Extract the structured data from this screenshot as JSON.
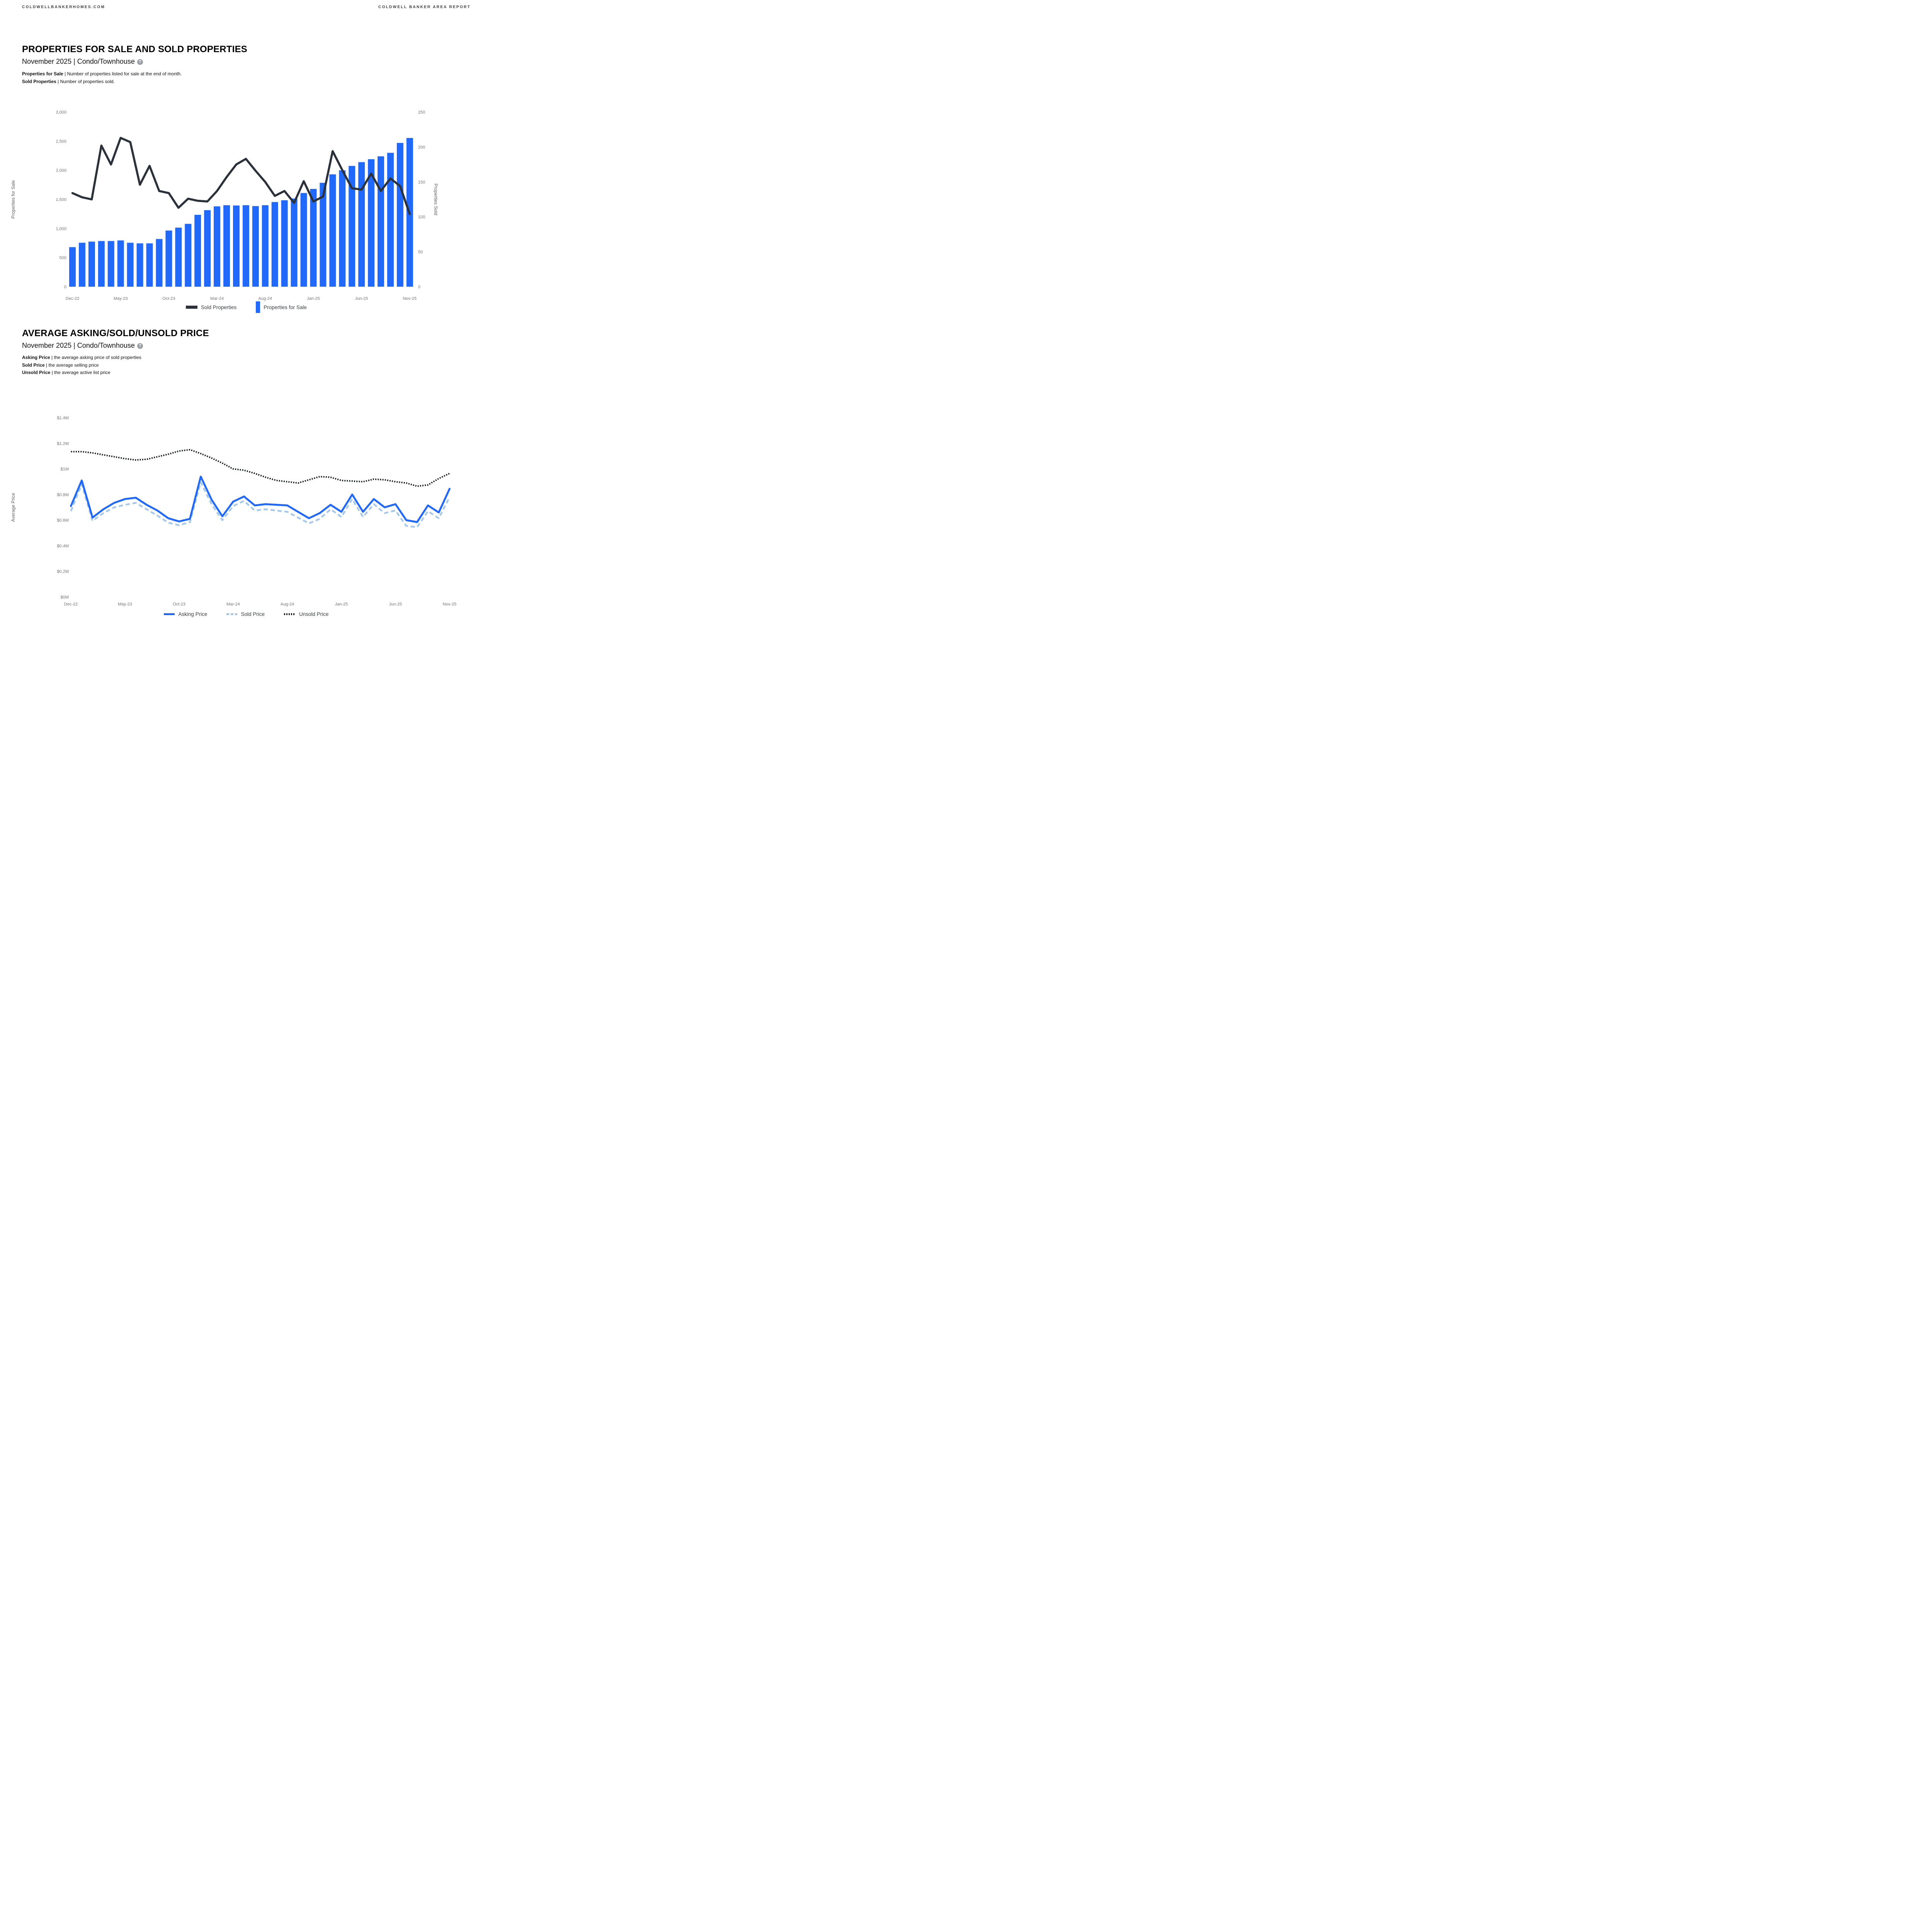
{
  "header": {
    "left": "COLDWELLBANKERHOMES.COM",
    "right": "COLDWELL BANKER AREA REPORT"
  },
  "sections": [
    {
      "title": "PROPERTIES FOR SALE AND SOLD PROPERTIES",
      "subtitle": "November 2025 | Condo/Townhouse",
      "help_icon": "?",
      "descriptions": [
        {
          "term": "Properties for Sale",
          "text": "| Number of properties listed for sale at the end of month."
        },
        {
          "term": "Sold Properties",
          "text": "| Number of properties sold."
        }
      ],
      "legend": [
        {
          "label": "Sold Properties"
        },
        {
          "label": "Properties for Sale"
        }
      ]
    },
    {
      "title": "AVERAGE ASKING/SOLD/UNSOLD PRICE",
      "subtitle": "November 2025 | Condo/Townhouse",
      "help_icon": "?",
      "descriptions": [
        {
          "term": "Asking Price",
          "text": "| the average asking price of sold properties"
        },
        {
          "term": "Sold Price",
          "text": "| the average selling price"
        },
        {
          "term": "Unsold Price",
          "text": "| the average active list price"
        }
      ],
      "legend": [
        {
          "label": "Asking Price"
        },
        {
          "label": "Sold Price"
        },
        {
          "label": "Unsold Price"
        }
      ]
    }
  ],
  "chart_data": [
    {
      "type": "bar",
      "title": "Properties for Sale and Sold Properties",
      "categories": [
        "Dec-22",
        "Jan-23",
        "Feb-23",
        "Mar-23",
        "Apr-23",
        "May-23",
        "Jun-23",
        "Jul-23",
        "Aug-23",
        "Sep-23",
        "Oct-23",
        "Nov-23",
        "Dec-23",
        "Jan-24",
        "Feb-24",
        "Mar-24",
        "Apr-24",
        "May-24",
        "Jun-24",
        "Jul-24",
        "Aug-24",
        "Sep-24",
        "Oct-24",
        "Nov-24",
        "Dec-24",
        "Jan-25",
        "Feb-25",
        "Mar-25",
        "Apr-25",
        "May-25",
        "Jun-25",
        "Jul-25",
        "Aug-25",
        "Sep-25",
        "Oct-25",
        "Nov-25"
      ],
      "x_tick_labels": [
        "Dec-22",
        "May-23",
        "Oct-23",
        "Mar-24",
        "Aug-24",
        "Jan-25",
        "Jun-25",
        "Nov-25"
      ],
      "grid": "off",
      "legend_position": "bottom",
      "series": [
        {
          "name": "Properties for Sale",
          "type": "bar",
          "axis": "left",
          "color": "#2169fb",
          "values": [
            680,
            755,
            775,
            785,
            785,
            795,
            755,
            745,
            745,
            820,
            965,
            1015,
            1080,
            1235,
            1315,
            1380,
            1400,
            1395,
            1400,
            1385,
            1400,
            1455,
            1485,
            1515,
            1610,
            1680,
            1785,
            1930,
            2000,
            2075,
            2140,
            2190,
            2240,
            2300,
            2470,
            2555
          ]
        },
        {
          "name": "Sold Properties",
          "type": "line",
          "axis": "right",
          "color": "#2b3139",
          "values": [
            134,
            128,
            125,
            202,
            175,
            213,
            207,
            146,
            173,
            137,
            134,
            113,
            126,
            123,
            122,
            137,
            157,
            175,
            183,
            166,
            150,
            130,
            137,
            120,
            151,
            122,
            129,
            194,
            167,
            141,
            139,
            162,
            137,
            155,
            144,
            104
          ]
        }
      ],
      "left_axis": {
        "title": "Properties for Sale",
        "min": 0,
        "max": 3000,
        "step": 500,
        "tick_labels": [
          "0",
          "500",
          "1,000",
          "1,500",
          "2,000",
          "2,500",
          "3,000"
        ]
      },
      "right_axis": {
        "title": "Properties Sold",
        "min": 0,
        "max": 250,
        "step": 50,
        "tick_labels": [
          "0",
          "50",
          "100",
          "150",
          "200",
          "250"
        ]
      }
    },
    {
      "type": "line",
      "title": "Average Asking/Sold/Unsold Price",
      "categories": [
        "Dec-22",
        "Jan-23",
        "Feb-23",
        "Mar-23",
        "Apr-23",
        "May-23",
        "Jun-23",
        "Jul-23",
        "Aug-23",
        "Sep-23",
        "Oct-23",
        "Nov-23",
        "Dec-23",
        "Jan-24",
        "Feb-24",
        "Mar-24",
        "Apr-24",
        "May-24",
        "Jun-24",
        "Jul-24",
        "Aug-24",
        "Sep-24",
        "Oct-24",
        "Nov-24",
        "Dec-24",
        "Jan-25",
        "Feb-25",
        "Mar-25",
        "Apr-25",
        "May-25",
        "Jun-25",
        "Jul-25",
        "Aug-25",
        "Sep-25",
        "Oct-25",
        "Nov-25"
      ],
      "x_tick_labels": [
        "Dec-22",
        "May-23",
        "Oct-23",
        "Mar-24",
        "Aug-24",
        "Jan-25",
        "Jun-25",
        "Nov-25"
      ],
      "grid": "off",
      "legend_position": "bottom",
      "unit": "$M",
      "series": [
        {
          "name": "Asking Price",
          "type": "line",
          "style": "solid",
          "color": "#2169fb",
          "values": [
            0.71,
            0.91,
            0.62,
            0.685,
            0.735,
            0.765,
            0.775,
            0.72,
            0.675,
            0.615,
            0.59,
            0.61,
            0.94,
            0.76,
            0.63,
            0.745,
            0.785,
            0.715,
            0.725,
            0.72,
            0.715,
            0.665,
            0.615,
            0.655,
            0.72,
            0.665,
            0.8,
            0.665,
            0.765,
            0.7,
            0.725,
            0.6,
            0.585,
            0.715,
            0.66,
            0.845
          ]
        },
        {
          "name": "Sold Price",
          "type": "line",
          "style": "dashed",
          "color": "#a5c8ea",
          "values": [
            0.67,
            0.88,
            0.595,
            0.655,
            0.7,
            0.72,
            0.735,
            0.685,
            0.635,
            0.58,
            0.56,
            0.585,
            0.895,
            0.725,
            0.6,
            0.71,
            0.75,
            0.675,
            0.685,
            0.675,
            0.665,
            0.62,
            0.575,
            0.61,
            0.685,
            0.625,
            0.765,
            0.625,
            0.725,
            0.655,
            0.675,
            0.555,
            0.545,
            0.67,
            0.615,
            0.78
          ]
        },
        {
          "name": "Unsold Price",
          "type": "line",
          "style": "dotted",
          "color": "#1b1e22",
          "values": [
            1.135,
            1.135,
            1.125,
            1.11,
            1.095,
            1.08,
            1.07,
            1.075,
            1.095,
            1.115,
            1.14,
            1.15,
            1.12,
            1.085,
            1.045,
            1.0,
            0.99,
            0.965,
            0.935,
            0.91,
            0.9,
            0.89,
            0.915,
            0.94,
            0.935,
            0.91,
            0.905,
            0.9,
            0.92,
            0.915,
            0.9,
            0.89,
            0.865,
            0.875,
            0.925,
            0.965
          ]
        }
      ],
      "y_axis": {
        "title": "Average Price",
        "min": 0,
        "max": 1.4,
        "step": 0.2,
        "tick_labels": [
          "$0M",
          "$0.2M",
          "$0.4M",
          "$0.6M",
          "$0.8M",
          "$1M",
          "$1.2M",
          "$1.4M"
        ]
      }
    }
  ]
}
